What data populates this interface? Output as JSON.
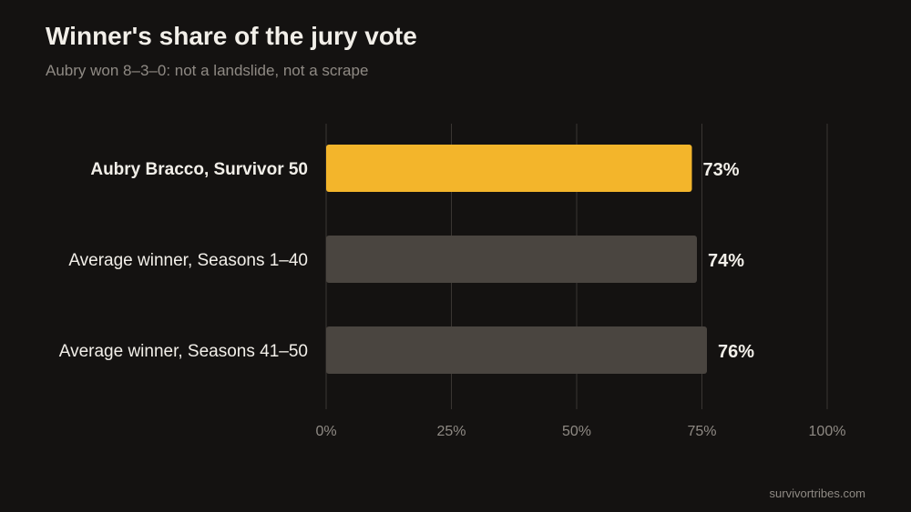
{
  "chart_data": {
    "type": "bar",
    "orientation": "horizontal",
    "title": "Winner's share of the jury vote",
    "subtitle": "Aubry won 8–3–0: not a landslide, not a scrape",
    "categories": [
      "Aubry Bracco, Survivor 50",
      "Average winner, Seasons 1–40",
      "Average winner, Seasons 41–50"
    ],
    "values": [
      73,
      74,
      76
    ],
    "value_labels": [
      "73%",
      "74%",
      "76%"
    ],
    "highlight_index": 0,
    "xlim": [
      0,
      100
    ],
    "x_ticks": [
      0,
      25,
      50,
      75,
      100
    ],
    "x_tick_labels": [
      "0%",
      "25%",
      "50%",
      "75%",
      "100%"
    ],
    "grid": true,
    "xlabel": "",
    "ylabel": "",
    "colors": {
      "background": "#141211",
      "highlight": "#f3b52b",
      "bar": "#4a4540",
      "text": "#f2efe9",
      "muted": "#8f8a84",
      "grid": "#3a3633"
    }
  },
  "source": "survivortribes.com"
}
